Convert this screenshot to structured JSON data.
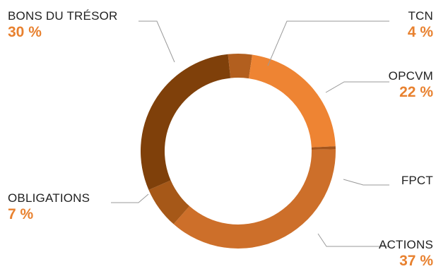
{
  "chart_data": {
    "type": "pie",
    "donut": true,
    "legend": "none",
    "accent_color": "#E8812F",
    "slices": [
      {
        "label": "TCN",
        "value": 4,
        "value_label": "4 %",
        "color": "#B25F1F"
      },
      {
        "label": "OPCVM",
        "value": 22,
        "value_label": "22 %",
        "color": "#EE8433"
      },
      {
        "label": "FPCT",
        "value": 0.5,
        "value_label": "",
        "color": "#A5551C"
      },
      {
        "label": "ACTIONS",
        "value": 37,
        "value_label": "37 %",
        "color": "#CD6F2A"
      },
      {
        "label": "OBLIGATIONS",
        "value": 7,
        "value_label": "7 %",
        "color": "#A65818"
      },
      {
        "label": "BONS DU TRÉSOR",
        "value": 30,
        "value_label": "30 %",
        "color": "#7F400A"
      }
    ]
  }
}
